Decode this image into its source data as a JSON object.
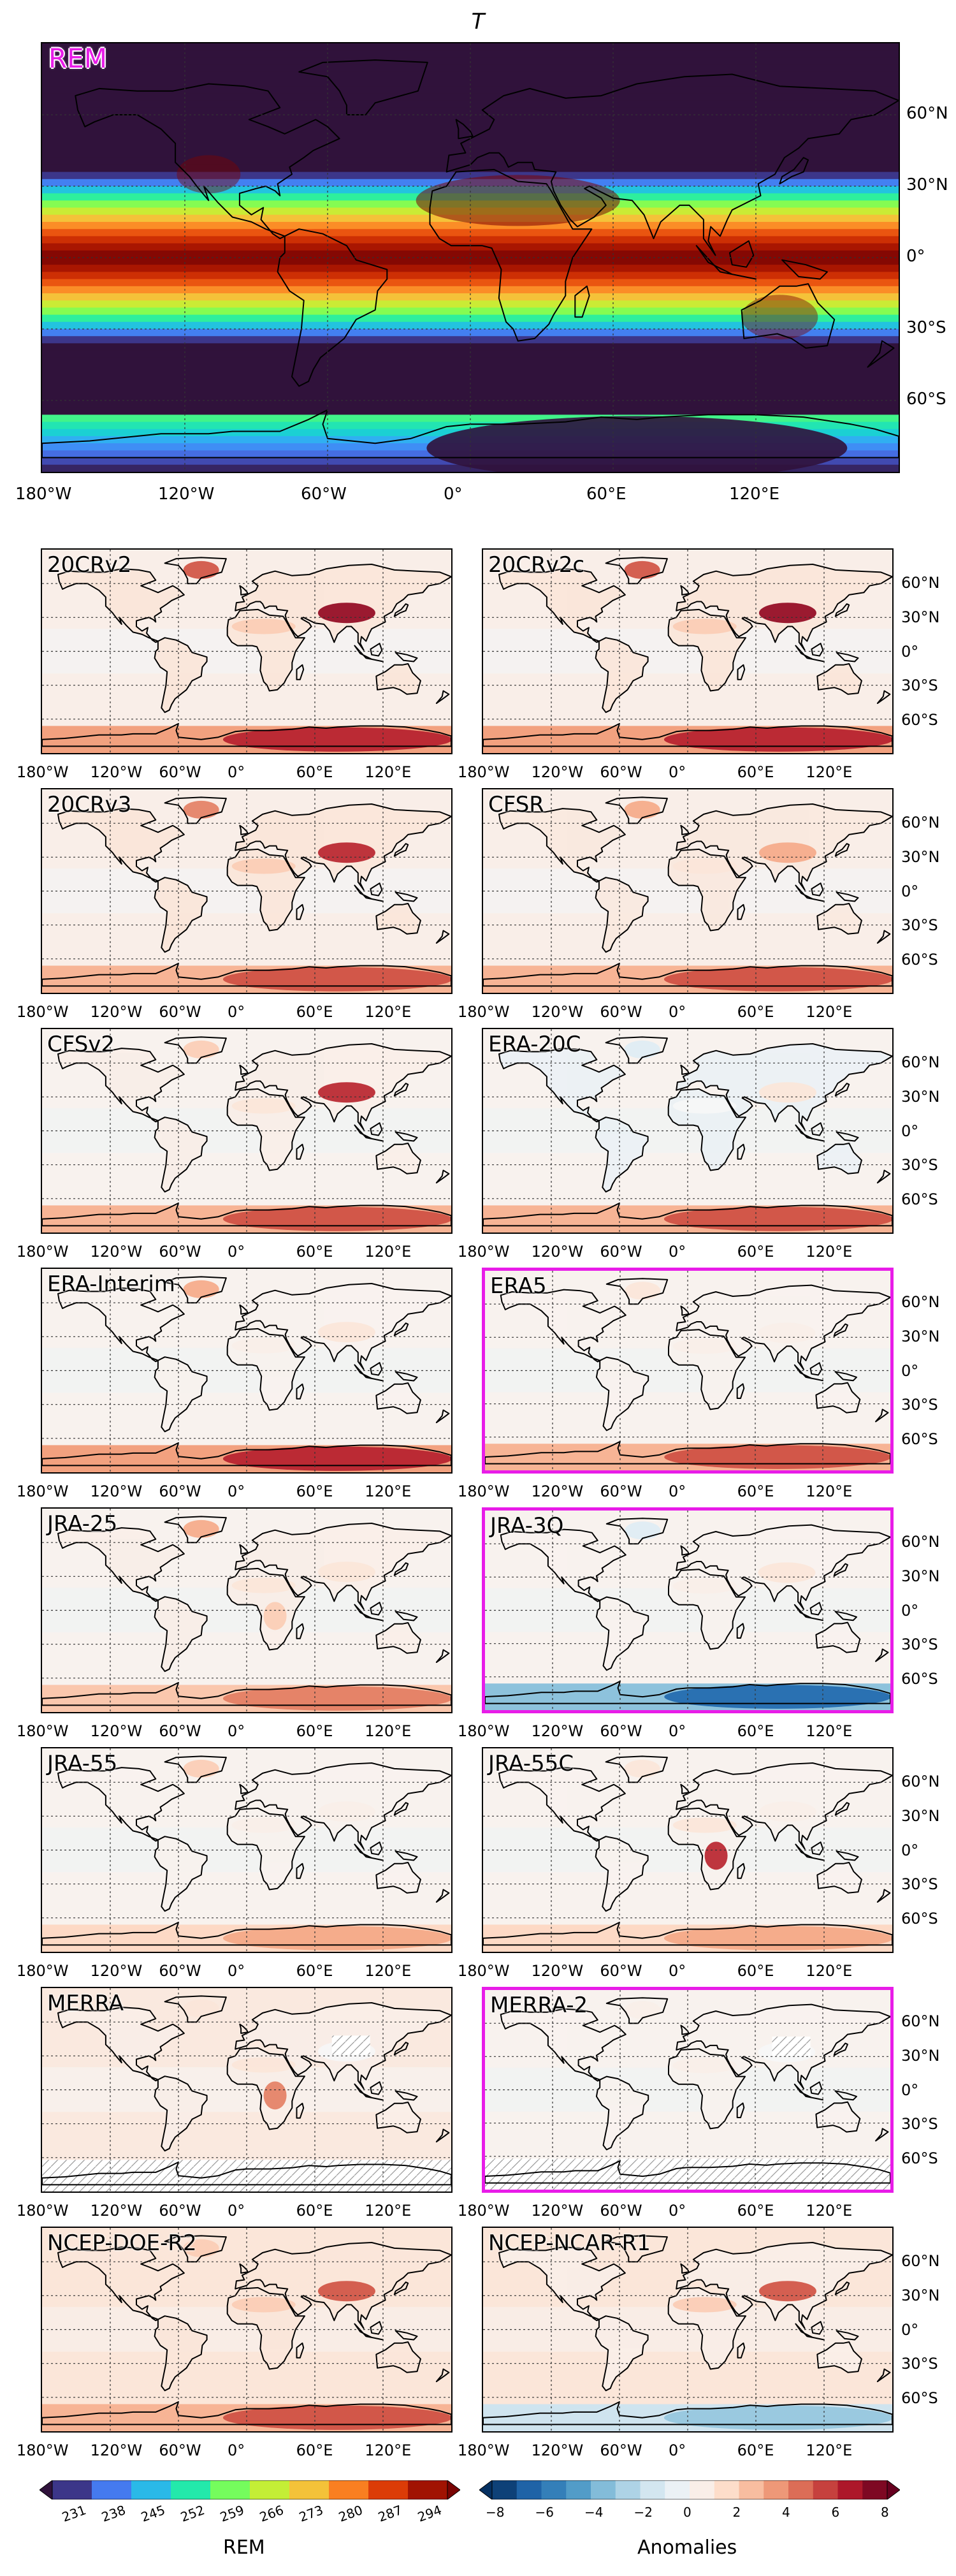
{
  "title": "T",
  "main_panel": {
    "label": "REM"
  },
  "lon_ticks_main": [
    "180°W",
    "120°W",
    "60°W",
    "0°",
    "60°E",
    "120°E"
  ],
  "lon_ticks_small": [
    "180°W",
    "120°W",
    "60°W",
    "0°",
    "60°E",
    "120°E"
  ],
  "lat_ticks_main": [
    "60°N",
    "30°N",
    "0°",
    "30°S",
    "60°S"
  ],
  "lat_ticks_small": [
    "60°N",
    "30°N",
    "0°",
    "30°S",
    "60°S"
  ],
  "panels": [
    {
      "label": "20CRv2",
      "highlight": false,
      "anomaly": {
        "ant": 6,
        "tib": 7,
        "arc": 5,
        "sah": 2,
        "land": 1,
        "ocean": 0.5,
        "africa": 0
      }
    },
    {
      "label": "20CRv2c",
      "highlight": false,
      "anomaly": {
        "ant": 6,
        "tib": 7,
        "arc": 5,
        "sah": 2,
        "land": 1,
        "ocean": 0.5,
        "africa": 0
      }
    },
    {
      "label": "20CRv3",
      "highlight": false,
      "anomaly": {
        "ant": 5,
        "tib": 6,
        "arc": 4,
        "sah": 2,
        "land": 1,
        "ocean": 0.5,
        "africa": 0
      }
    },
    {
      "label": "CFSR",
      "highlight": false,
      "anomaly": {
        "ant": 5,
        "tib": 3,
        "arc": 3,
        "sah": 1,
        "land": 0.8,
        "ocean": 0.5,
        "africa": 0
      }
    },
    {
      "label": "CFSv2",
      "highlight": false,
      "anomaly": {
        "ant": 5,
        "tib": 6,
        "arc": 2,
        "sah": 1,
        "land": 0.5,
        "ocean": 0.3,
        "africa": 0
      }
    },
    {
      "label": "ERA-20C",
      "highlight": false,
      "anomaly": {
        "ant": 5,
        "tib": 1,
        "arc": -1,
        "sah": 0,
        "land": -0.5,
        "ocean": 0.3,
        "africa": 0
      }
    },
    {
      "label": "ERA-Interim",
      "highlight": false,
      "anomaly": {
        "ant": 6,
        "tib": 1,
        "arc": 3,
        "sah": 0.5,
        "land": 0.3,
        "ocean": 0.3,
        "africa": 0
      }
    },
    {
      "label": "ERA5",
      "highlight": true,
      "anomaly": {
        "ant": 5,
        "tib": 0.5,
        "arc": 1,
        "sah": 0.5,
        "land": 0.3,
        "ocean": 0.3,
        "africa": 0
      }
    },
    {
      "label": "JRA-25",
      "highlight": false,
      "anomaly": {
        "ant": 4,
        "tib": 1,
        "arc": 3,
        "sah": 1,
        "land": 0.5,
        "ocean": 0.3,
        "africa": 2
      }
    },
    {
      "label": "JRA-3Q",
      "highlight": true,
      "anomaly": {
        "ant": -6,
        "tib": 1,
        "arc": -1,
        "sah": 0.5,
        "land": 0.3,
        "ocean": 0.3,
        "africa": 0
      }
    },
    {
      "label": "JRA-55",
      "highlight": false,
      "anomaly": {
        "ant": 3,
        "tib": 0.5,
        "arc": 2,
        "sah": 0.5,
        "land": 0.3,
        "ocean": 0.3,
        "africa": 0
      }
    },
    {
      "label": "JRA-55C",
      "highlight": false,
      "anomaly": {
        "ant": 3,
        "tib": 0.5,
        "arc": 1,
        "sah": 1,
        "land": 0.3,
        "ocean": 0.3,
        "africa": 6
      }
    },
    {
      "label": "MERRA",
      "highlight": false,
      "anomaly": {
        "ant": 0,
        "tib": 0,
        "arc": 1,
        "sah": 1,
        "land": 0.5,
        "ocean": 0.8,
        "africa": 4
      },
      "hatch": true
    },
    {
      "label": "MERRA-2",
      "highlight": true,
      "anomaly": {
        "ant": 0,
        "tib": 0,
        "arc": 0.5,
        "sah": 0.5,
        "land": 0.3,
        "ocean": 0.3,
        "africa": 0
      },
      "hatch": true
    },
    {
      "label": "NCEP-DOE-R2",
      "highlight": false,
      "anomaly": {
        "ant": 5,
        "tib": 5,
        "arc": 2,
        "sah": 2,
        "land": 1,
        "ocean": 1,
        "africa": 0
      }
    },
    {
      "label": "NCEP-NCAR-R1",
      "highlight": false,
      "anomaly": {
        "ant": -3,
        "tib": 5,
        "arc": 1,
        "sah": 2,
        "land": 0.5,
        "ocean": 1,
        "africa": 0
      }
    }
  ],
  "colorbar_rem": {
    "label": "REM",
    "ticks": [
      "231",
      "238",
      "245",
      "252",
      "259",
      "266",
      "273",
      "280",
      "287",
      "294"
    ]
  },
  "colorbar_anom": {
    "label": "Anomalies",
    "ticks": [
      "−8",
      "−6",
      "−4",
      "−2",
      "0",
      "2",
      "4",
      "6",
      "8"
    ]
  }
}
